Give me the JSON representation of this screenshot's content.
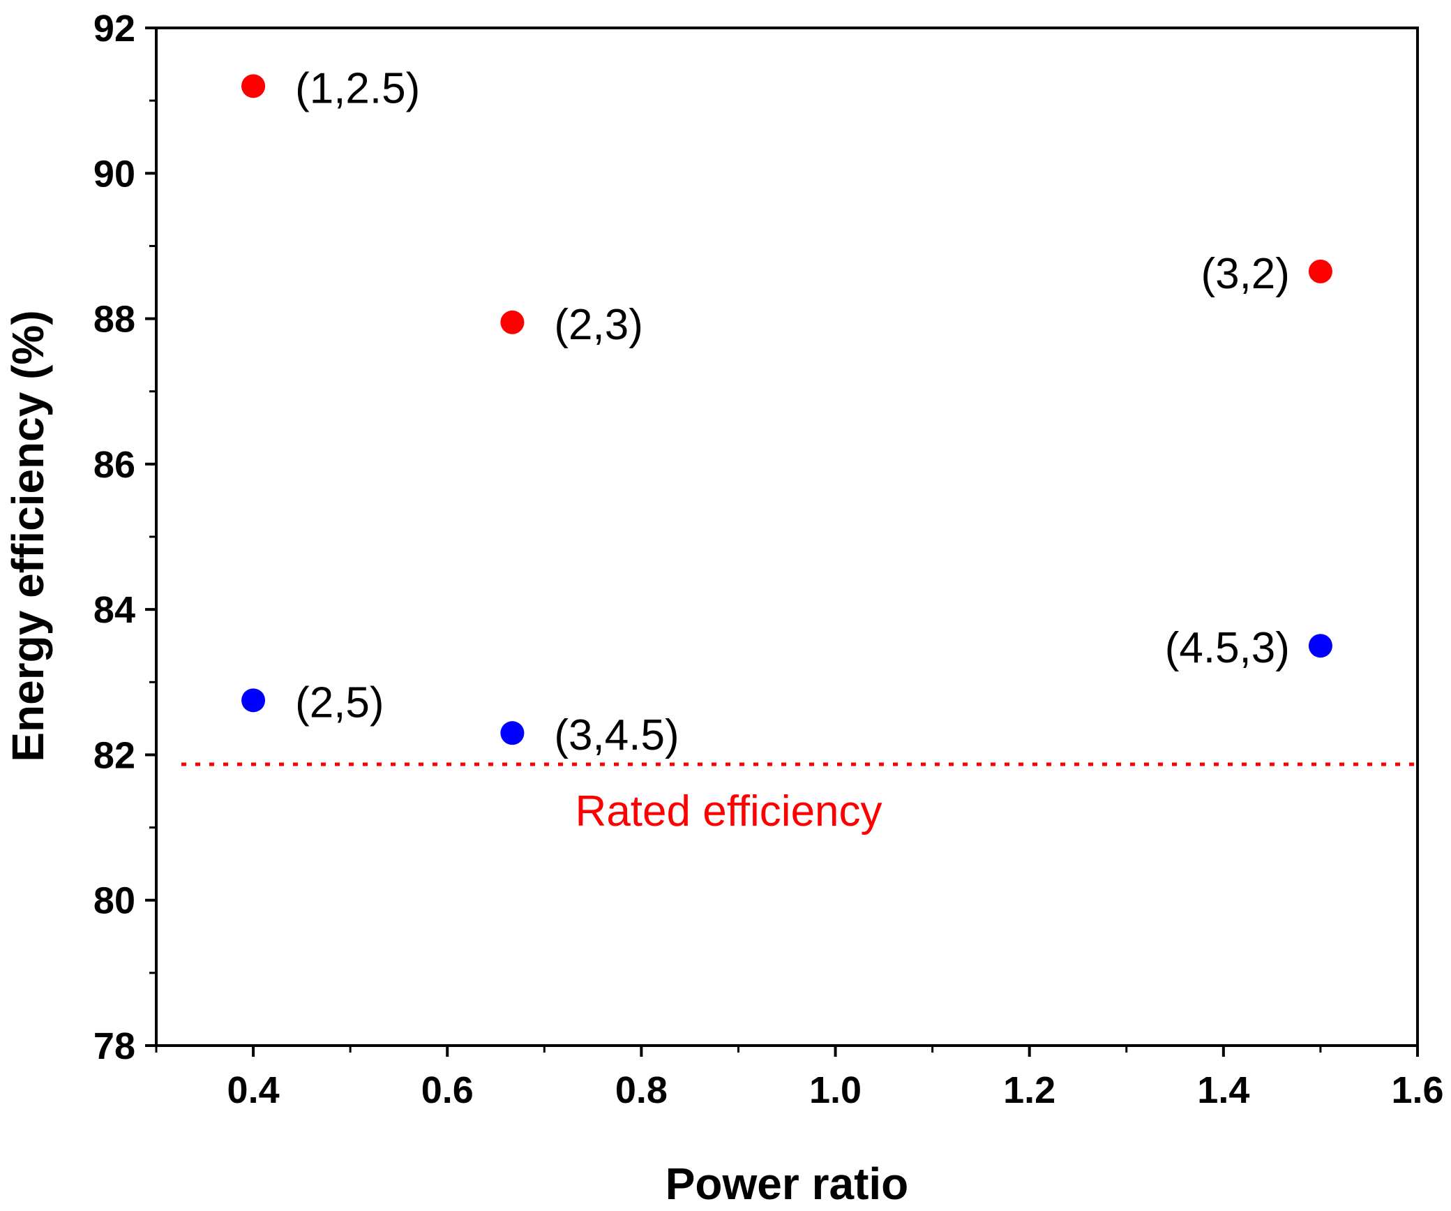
{
  "chart_data": {
    "type": "scatter",
    "title": "",
    "xlabel": "Power ratio",
    "ylabel": "Energy efficiency (%)",
    "xlim": [
      0.3,
      1.6
    ],
    "ylim": [
      78,
      92
    ],
    "x_ticks": [
      "0.4",
      "0.6",
      "0.8",
      "1.0",
      "1.2",
      "1.4",
      "1.6"
    ],
    "y_ticks": [
      "78",
      "80",
      "82",
      "84",
      "86",
      "88",
      "90",
      "92"
    ],
    "grid": false,
    "series": [
      {
        "name": "red",
        "color": "#ff0000",
        "points": [
          {
            "x": 0.4,
            "y": 91.2,
            "label": "(1,2.5)"
          },
          {
            "x": 0.667,
            "y": 87.95,
            "label": "(2,3)"
          },
          {
            "x": 1.5,
            "y": 88.65,
            "label": "(3,2)"
          }
        ]
      },
      {
        "name": "blue",
        "color": "#0000ff",
        "points": [
          {
            "x": 0.4,
            "y": 82.75,
            "label": "(2,5)"
          },
          {
            "x": 0.667,
            "y": 82.3,
            "label": "(3,4.5)"
          },
          {
            "x": 1.5,
            "y": 83.5,
            "label": "(4.5,3)"
          }
        ]
      }
    ],
    "reference_line": {
      "y": 81.87,
      "label": "Rated efficiency",
      "color": "#ff0000",
      "style": "dotted"
    }
  }
}
